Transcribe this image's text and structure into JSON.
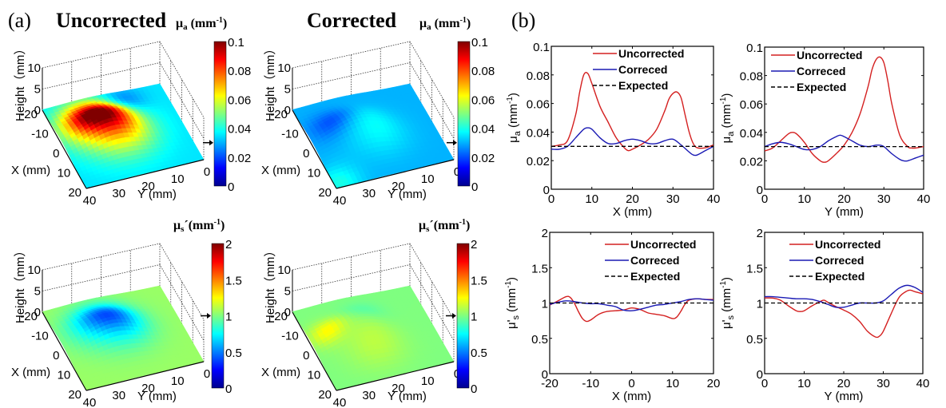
{
  "figure": {
    "panel_a_label": "(a)",
    "panel_b_label": "(b)",
    "col_titles": [
      "Uncorrected",
      "Corrected"
    ]
  },
  "chart_data": [
    {
      "type": "heatmap",
      "panel": "a",
      "title": "Uncorrected",
      "colorbar_label": "μa (mm⁻¹)",
      "colorbar_ticks": [
        "0",
        "0.02",
        "0.04",
        "0.06",
        "0.08",
        "0.1"
      ],
      "colorbar_range": [
        0,
        0.1
      ],
      "expected_marker_value": 0.03,
      "xlabel": "X (mm)",
      "ylabel": "Y (mm)",
      "zlabel": "Height（mm）",
      "x_ticks": [
        "-20",
        "-10",
        "0",
        "10",
        "20"
      ],
      "y_ticks": [
        "0",
        "10",
        "20",
        "30",
        "40"
      ],
      "z_ticks": [
        "0",
        "5",
        "10"
      ],
      "background_value": 0.035,
      "blobs": [
        {
          "x": -8,
          "y": 28,
          "value": 0.09,
          "spread": 7
        },
        {
          "x": 0,
          "y": 22,
          "value": 0.07,
          "spread": 8
        },
        {
          "x": -14,
          "y": 15,
          "value": 0.02,
          "spread": 5
        }
      ]
    },
    {
      "type": "heatmap",
      "panel": "a",
      "title": "Corrected",
      "colorbar_label": "μa (mm⁻¹)",
      "colorbar_ticks": [
        "0",
        "0.02",
        "0.04",
        "0.06",
        "0.08",
        "0.1"
      ],
      "colorbar_range": [
        0,
        0.1
      ],
      "expected_marker_value": 0.03,
      "xlabel": "X (mm)",
      "ylabel": "Y (mm)",
      "zlabel": "Height（mm）",
      "x_ticks": [
        "-20",
        "-10",
        "0",
        "10",
        "20"
      ],
      "y_ticks": [
        "0",
        "10",
        "20",
        "30",
        "40"
      ],
      "z_ticks": [
        "0",
        "5",
        "10"
      ],
      "background_value": 0.03,
      "blobs": [
        {
          "x": -6,
          "y": 32,
          "value": 0.02,
          "spread": 5
        },
        {
          "x": 2,
          "y": 20,
          "value": 0.038,
          "spread": 7
        },
        {
          "x": 18,
          "y": 38,
          "value": 0.04,
          "spread": 5
        }
      ]
    },
    {
      "type": "heatmap",
      "panel": "a",
      "title": "",
      "colorbar_label": "μs′(mm⁻¹)",
      "colorbar_ticks": [
        "0",
        "0.5",
        "1",
        "1.5",
        "2"
      ],
      "colorbar_range": [
        0,
        2
      ],
      "expected_marker_value": 1,
      "xlabel": "X (mm)",
      "ylabel": "Y (mm)",
      "zlabel": "Height（mm）",
      "x_ticks": [
        "-20",
        "-10",
        "0",
        "10",
        "20"
      ],
      "y_ticks": [
        "0",
        "10",
        "20",
        "30",
        "40"
      ],
      "z_ticks": [
        "0",
        "5",
        "10"
      ],
      "background_value": 1.05,
      "blobs": [
        {
          "x": -6,
          "y": 26,
          "value": 0.6,
          "spread": 7
        },
        {
          "x": -2,
          "y": 20,
          "value": 0.75,
          "spread": 7
        }
      ]
    },
    {
      "type": "heatmap",
      "panel": "a",
      "title": "",
      "colorbar_label": "μs′(mm⁻¹)",
      "colorbar_ticks": [
        "0",
        "0.5",
        "1",
        "1.5",
        "2"
      ],
      "colorbar_range": [
        0,
        2
      ],
      "expected_marker_value": 1,
      "xlabel": "X (mm)",
      "ylabel": "Y (mm)",
      "zlabel": "Height（mm）",
      "x_ticks": [
        "-20",
        "-10",
        "0",
        "10",
        "20"
      ],
      "y_ticks": [
        "0",
        "10",
        "20",
        "30",
        "40"
      ],
      "z_ticks": [
        "0",
        "5",
        "10"
      ],
      "background_value": 1.0,
      "blobs": [
        {
          "x": -4,
          "y": 34,
          "value": 1.25,
          "spread": 4
        },
        {
          "x": 6,
          "y": 22,
          "value": 1.12,
          "spread": 7
        },
        {
          "x": -8,
          "y": 20,
          "value": 0.92,
          "spread": 5
        }
      ]
    },
    {
      "type": "line",
      "panel": "b",
      "title": "",
      "xlabel": "X (mm)",
      "ylabel": "μa (mm⁻¹)",
      "xlim": [
        0,
        40
      ],
      "ylim": [
        0,
        0.1
      ],
      "x_ticks": [
        0,
        10,
        20,
        30,
        40
      ],
      "y_ticks": [
        0,
        0.02,
        0.04,
        0.06,
        0.08,
        0.1
      ],
      "y_tick_labels": [
        "0",
        "0.02",
        "0.04",
        "0.06",
        "0.08",
        "0.1"
      ],
      "legend": "top-center",
      "series": [
        {
          "name": "Uncorrected",
          "color": "#d42020",
          "dash": false,
          "x": [
            0,
            2,
            4,
            6,
            7,
            8,
            9,
            10,
            12,
            14,
            16,
            18,
            19,
            20,
            22,
            24,
            26,
            28,
            29,
            30,
            31,
            32,
            33,
            34,
            35,
            36,
            38,
            40
          ],
          "y": [
            0.03,
            0.031,
            0.034,
            0.052,
            0.068,
            0.08,
            0.081,
            0.074,
            0.058,
            0.047,
            0.036,
            0.029,
            0.027,
            0.028,
            0.031,
            0.035,
            0.042,
            0.055,
            0.063,
            0.067,
            0.068,
            0.064,
            0.052,
            0.04,
            0.032,
            0.029,
            0.029,
            0.031
          ]
        },
        {
          "name": "Correced",
          "color": "#1a1ab4",
          "dash": false,
          "x": [
            0,
            2,
            4,
            6,
            8,
            9,
            10,
            12,
            14,
            16,
            18,
            20,
            22,
            24,
            26,
            28,
            30,
            32,
            34,
            35,
            36,
            38,
            40
          ],
          "y": [
            0.028,
            0.028,
            0.03,
            0.036,
            0.042,
            0.043,
            0.042,
            0.036,
            0.032,
            0.032,
            0.034,
            0.035,
            0.034,
            0.032,
            0.032,
            0.034,
            0.035,
            0.031,
            0.026,
            0.024,
            0.024,
            0.027,
            0.03
          ]
        },
        {
          "name": "Expected",
          "color": "#000000",
          "dash": true,
          "x": [
            0,
            40
          ],
          "y": [
            0.03,
            0.03
          ]
        }
      ]
    },
    {
      "type": "line",
      "panel": "b",
      "title": "",
      "xlabel": "Y (mm)",
      "ylabel": "μa (mm⁻¹)",
      "xlim": [
        0,
        40
      ],
      "ylim": [
        0,
        0.1
      ],
      "x_ticks": [
        0,
        10,
        20,
        30,
        40
      ],
      "y_ticks": [
        0,
        0.02,
        0.04,
        0.06,
        0.08,
        0.1
      ],
      "y_tick_labels": [
        "0",
        "0.02",
        "0.04",
        "0.06",
        "0.08",
        "0.1"
      ],
      "legend": "top-left",
      "series": [
        {
          "name": "Uncorrected",
          "color": "#d42020",
          "dash": false,
          "x": [
            0,
            2,
            4,
            6,
            7,
            8,
            10,
            12,
            14,
            15,
            16,
            18,
            20,
            22,
            24,
            26,
            27,
            28,
            29,
            30,
            31,
            32,
            34,
            36,
            37,
            38,
            40
          ],
          "y": [
            0.027,
            0.029,
            0.034,
            0.039,
            0.04,
            0.039,
            0.033,
            0.025,
            0.02,
            0.019,
            0.02,
            0.025,
            0.031,
            0.04,
            0.053,
            0.072,
            0.084,
            0.091,
            0.093,
            0.089,
            0.076,
            0.06,
            0.038,
            0.03,
            0.029,
            0.029,
            0.03
          ]
        },
        {
          "name": "Correced",
          "color": "#1a1ab4",
          "dash": false,
          "x": [
            0,
            2,
            4,
            6,
            8,
            10,
            12,
            14,
            16,
            18,
            19,
            20,
            22,
            24,
            26,
            28,
            29,
            30,
            32,
            34,
            35,
            36,
            38,
            40
          ],
          "y": [
            0.03,
            0.032,
            0.033,
            0.032,
            0.03,
            0.028,
            0.028,
            0.03,
            0.034,
            0.037,
            0.038,
            0.037,
            0.034,
            0.031,
            0.03,
            0.031,
            0.031,
            0.03,
            0.025,
            0.021,
            0.02,
            0.02,
            0.022,
            0.024
          ]
        },
        {
          "name": "Expected",
          "color": "#000000",
          "dash": true,
          "x": [
            0,
            40
          ],
          "y": [
            0.03,
            0.03
          ]
        }
      ]
    },
    {
      "type": "line",
      "panel": "b",
      "title": "",
      "xlabel": "X (mm)",
      "ylabel": "μ′s (mm⁻¹)",
      "xlim": [
        -20,
        20
      ],
      "ylim": [
        0,
        2
      ],
      "x_ticks": [
        -20,
        -10,
        0,
        10,
        20
      ],
      "y_ticks": [
        0,
        0.5,
        1,
        1.5,
        2
      ],
      "y_tick_labels": [
        "0",
        "0.5",
        "1",
        "1.5",
        "2"
      ],
      "legend": "top-right",
      "series": [
        {
          "name": "Uncorrected",
          "color": "#d42020",
          "dash": false,
          "x": [
            -20,
            -18,
            -16,
            -15,
            -14,
            -13,
            -12,
            -11,
            -10,
            -8,
            -6,
            -4,
            -2,
            0,
            2,
            4,
            6,
            8,
            10,
            11,
            12,
            13,
            14,
            16,
            18,
            20
          ],
          "y": [
            0.97,
            1.03,
            1.09,
            1.08,
            1.0,
            0.88,
            0.78,
            0.74,
            0.76,
            0.84,
            0.88,
            0.89,
            0.9,
            0.93,
            0.91,
            0.86,
            0.84,
            0.82,
            0.78,
            0.8,
            0.88,
            0.98,
            1.04,
            1.06,
            1.05,
            1.05
          ]
        },
        {
          "name": "Correced",
          "color": "#1a1ab4",
          "dash": false,
          "x": [
            -20,
            -18,
            -16,
            -14,
            -12,
            -10,
            -8,
            -6,
            -4,
            -2,
            0,
            2,
            4,
            6,
            8,
            10,
            12,
            14,
            16,
            18,
            20
          ],
          "y": [
            0.98,
            1.01,
            1.03,
            1.02,
            1.0,
            0.99,
            0.99,
            0.97,
            0.95,
            0.9,
            0.89,
            0.91,
            0.94,
            0.97,
            0.98,
            1.0,
            1.02,
            1.05,
            1.06,
            1.05,
            1.04
          ]
        },
        {
          "name": "Expected",
          "color": "#000000",
          "dash": true,
          "x": [
            -20,
            20
          ],
          "y": [
            1,
            1
          ]
        }
      ]
    },
    {
      "type": "line",
      "panel": "b",
      "title": "",
      "xlabel": "Y (mm)",
      "ylabel": "μ′s (mm⁻¹)",
      "xlim": [
        0,
        40
      ],
      "ylim": [
        0,
        2
      ],
      "x_ticks": [
        0,
        10,
        20,
        30,
        40
      ],
      "y_ticks": [
        0,
        0.5,
        1,
        1.5,
        2
      ],
      "y_tick_labels": [
        "0",
        "0.5",
        "1",
        "1.5",
        "2"
      ],
      "legend": "top-center",
      "series": [
        {
          "name": "Uncorrected",
          "color": "#d42020",
          "dash": false,
          "x": [
            0,
            2,
            4,
            6,
            8,
            9,
            10,
            12,
            14,
            15,
            16,
            18,
            20,
            22,
            24,
            26,
            28,
            29,
            30,
            32,
            34,
            36,
            37,
            38,
            40
          ],
          "y": [
            1.07,
            1.07,
            1.04,
            0.96,
            0.89,
            0.88,
            0.89,
            0.96,
            1.02,
            1.04,
            1.01,
            0.95,
            0.9,
            0.84,
            0.74,
            0.6,
            0.52,
            0.53,
            0.6,
            0.85,
            1.08,
            1.17,
            1.18,
            1.16,
            1.13
          ]
        },
        {
          "name": "Correced",
          "color": "#1a1ab4",
          "dash": false,
          "x": [
            0,
            2,
            4,
            6,
            8,
            10,
            12,
            14,
            16,
            18,
            20,
            22,
            24,
            26,
            28,
            30,
            32,
            34,
            36,
            38,
            40
          ],
          "y": [
            1.09,
            1.09,
            1.08,
            1.07,
            1.06,
            1.06,
            1.05,
            1.02,
            0.98,
            0.94,
            0.94,
            0.97,
            1.0,
            1.0,
            1.0,
            1.03,
            1.12,
            1.21,
            1.25,
            1.22,
            1.15
          ]
        },
        {
          "name": "Expected",
          "color": "#000000",
          "dash": true,
          "x": [
            0,
            40
          ],
          "y": [
            1,
            1
          ]
        }
      ]
    }
  ]
}
